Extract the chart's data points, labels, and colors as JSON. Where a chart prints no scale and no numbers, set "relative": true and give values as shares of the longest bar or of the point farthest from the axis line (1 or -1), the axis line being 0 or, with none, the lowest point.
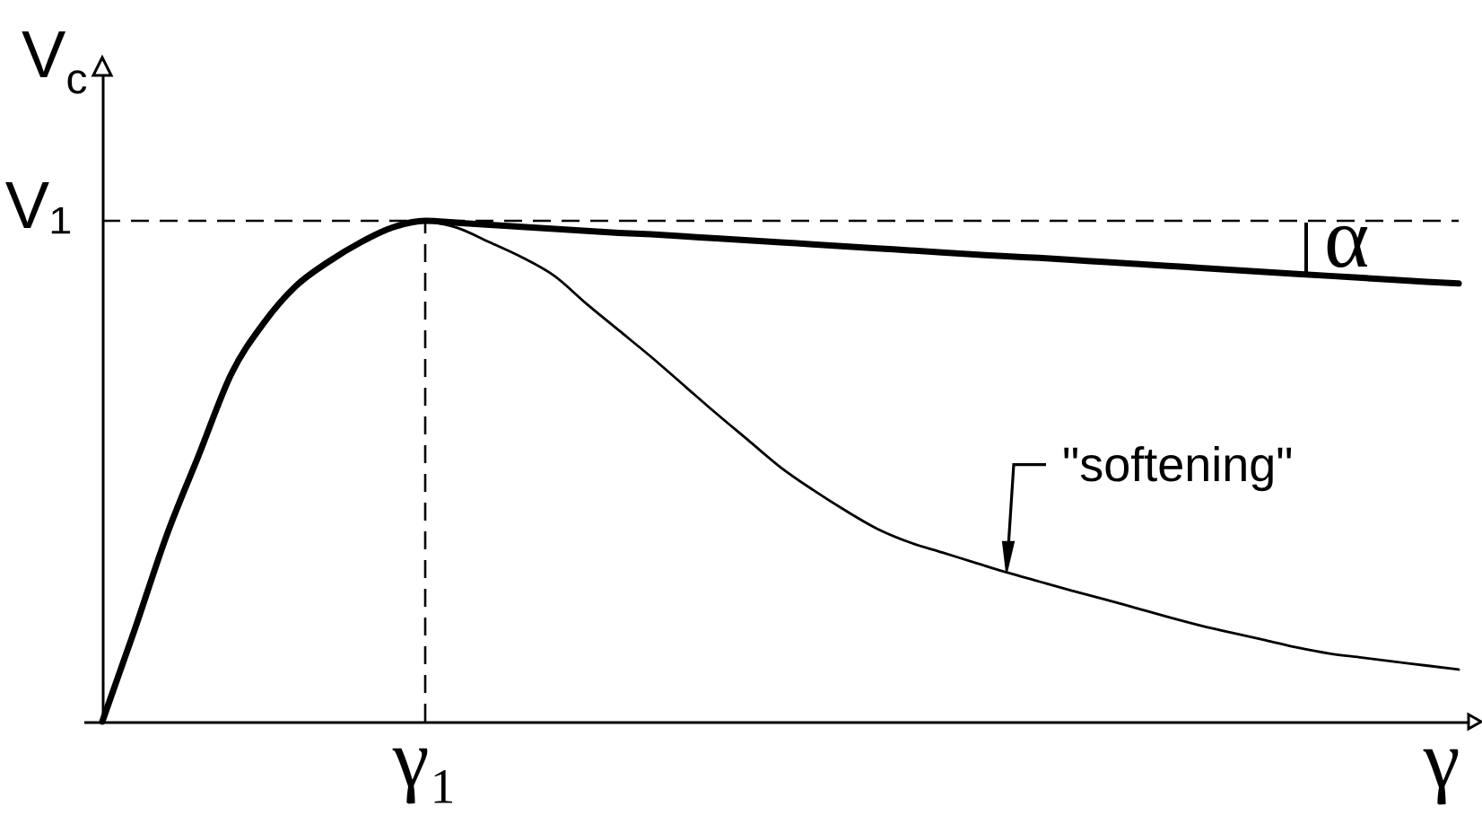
{
  "chart_data": {
    "type": "line",
    "relative": true,
    "xlabel": "γ",
    "ylabel": "V$_{c}$",
    "categories": [
      null,
      null,
      null,
      null,
      null,
      null,
      null,
      null,
      null,
      null,
      null,
      null,
      null,
      null,
      null,
      null,
      null,
      null,
      null,
      null,
      null,
      null,
      null,
      null,
      null,
      null,
      null,
      null,
      null,
      null,
      null,
      null,
      null,
      null,
      null,
      null,
      null,
      null,
      null,
      null,
      null,
      null,
      null
    ],
    "series": [
      {
        "color": "#000000",
        "values": [
          0,
          0.183,
          0.373,
          0.534,
          0.695,
          0.796,
          0.87,
          0.918,
          0.957,
          0.987,
          1.0,
          0.996,
          0.992,
          0.988,
          0.984,
          0.98,
          0.976,
          0.973,
          0.969,
          0.965,
          0.961,
          0.957,
          0.953,
          0.949,
          0.945,
          0.941,
          0.937,
          0.933,
          0.929,
          0.926,
          0.922,
          0.918,
          0.914,
          0.91,
          0.906,
          0.902,
          0.898,
          0.894,
          0.89,
          0.886,
          0.882,
          0.878,
          0.875
        ]
      },
      {
        "color": "#000000",
        "values": [
          null,
          null,
          null,
          null,
          null,
          null,
          null,
          null,
          null,
          null,
          1.0,
          0.986,
          0.957,
          0.927,
          0.89,
          0.834,
          0.781,
          0.728,
          0.672,
          0.616,
          0.562,
          0.508,
          0.463,
          0.422,
          0.385,
          0.358,
          0.338,
          0.318,
          0.298,
          0.28,
          0.262,
          0.245,
          0.227,
          0.209,
          0.192,
          0.177,
          0.163,
          0.148,
          0.136,
          0.128,
          0.12,
          0.112,
          0.104
        ]
      }
    ],
    "ref_lines": [
      {
        "axis": "y",
        "value": 1,
        "label": "V₁",
        "line_style": "dashed",
        "color": "#000000"
      }
    ],
    "annotations": [
      "\"softening\"",
      "α",
      "γ₁"
    ]
  }
}
